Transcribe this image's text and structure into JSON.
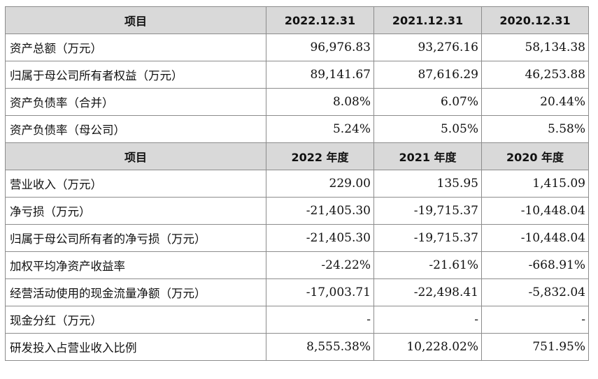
{
  "section1": {
    "headers": [
      "项目",
      "2022.12.31",
      "2021.12.31",
      "2020.12.31"
    ],
    "rows": [
      {
        "label": "资产总额（万元）",
        "v2022": "96,976.83",
        "v2021": "93,276.16",
        "v2020": "58,134.38"
      },
      {
        "label": "归属于母公司所有者权益（万元）",
        "v2022": "89,141.67",
        "v2021": "87,616.29",
        "v2020": "46,253.88"
      },
      {
        "label": "资产负债率（合并）",
        "v2022": "8.08%",
        "v2021": "6.07%",
        "v2020": "20.44%"
      },
      {
        "label": "资产负债率（母公司）",
        "v2022": "5.24%",
        "v2021": "5.05%",
        "v2020": "5.58%"
      }
    ]
  },
  "section2": {
    "headers": [
      "项目",
      "2022 年度",
      "2021 年度",
      "2020 年度"
    ],
    "rows": [
      {
        "label": "营业收入（万元）",
        "v2022": "229.00",
        "v2021": "135.95",
        "v2020": "1,415.09"
      },
      {
        "label": "净亏损（万元）",
        "v2022": "-21,405.30",
        "v2021": "-19,715.37",
        "v2020": "-10,448.04"
      },
      {
        "label": "归属于母公司所有者的净亏损（万元）",
        "v2022": "-21,405.30",
        "v2021": "-19,715.37",
        "v2020": "-10,448.04"
      },
      {
        "label": "加权平均净资产收益率",
        "v2022": "-24.22%",
        "v2021": "-21.61%",
        "v2020": "-668.91%"
      },
      {
        "label": "经营活动使用的现金流量净额（万元）",
        "v2022": "-17,003.71",
        "v2021": "-22,498.41",
        "v2020": "-5,832.04"
      },
      {
        "label": "现金分红（万元）",
        "v2022": "-",
        "v2021": "-",
        "v2020": "-"
      },
      {
        "label": "研发投入占营业收入比例",
        "v2022": "8,555.38%",
        "v2021": "10,228.02%",
        "v2020": "751.95%"
      }
    ]
  }
}
